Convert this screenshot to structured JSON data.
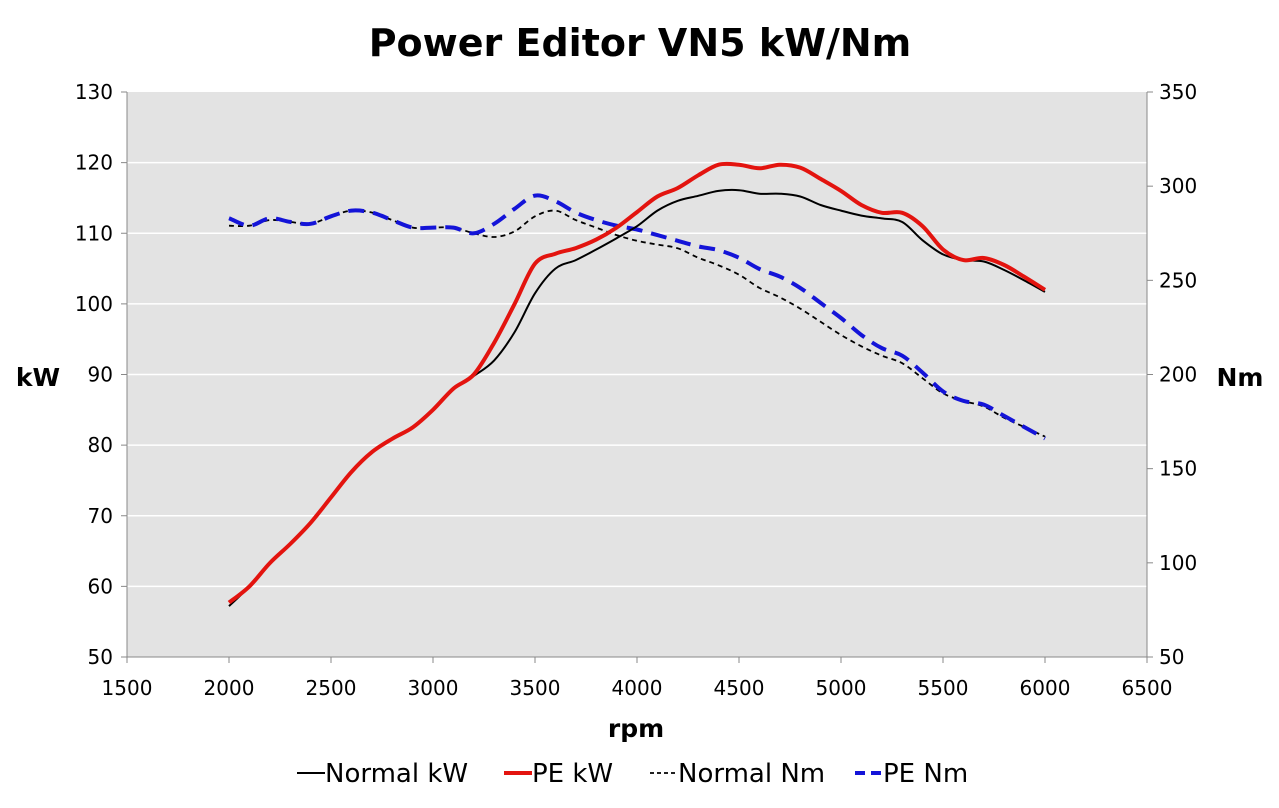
{
  "chart_data": {
    "type": "line",
    "title": "Power Editor VN5 kW/Nm",
    "xlabel": "rpm",
    "ylabel_left": "kW",
    "ylabel_right": "Nm",
    "xlim": [
      1500,
      6500
    ],
    "ylim_left": [
      50,
      130
    ],
    "ylim_right": [
      50,
      350
    ],
    "x_ticks": [
      "1500",
      "2000",
      "2500",
      "3000",
      "3500",
      "4000",
      "4500",
      "5000",
      "5500",
      "6000",
      "6500"
    ],
    "y_left_ticks": [
      "50",
      "60",
      "70",
      "80",
      "90",
      "100",
      "110",
      "120",
      "130"
    ],
    "y_right_ticks": [
      "50",
      "100",
      "150",
      "200",
      "250",
      "300",
      "350"
    ],
    "grid": "horizontal",
    "legend_position": "bottom",
    "colors": {
      "plot_bg": "#e3e3e3",
      "grid": "#ffffff",
      "normal": "#000000",
      "pe_kw": "#e3140f",
      "pe_nm": "#1414d8"
    },
    "series": [
      {
        "name": "Normal kW",
        "axis": "left",
        "style": "solid",
        "color": "#000000",
        "points": [
          [
            2000,
            57.2
          ],
          [
            2100,
            60.0
          ],
          [
            2200,
            63.3
          ],
          [
            2300,
            66.0
          ],
          [
            2400,
            69.0
          ],
          [
            2500,
            72.6
          ],
          [
            2600,
            76.2
          ],
          [
            2700,
            79.0
          ],
          [
            2800,
            80.9
          ],
          [
            2900,
            82.5
          ],
          [
            3000,
            85.0
          ],
          [
            3100,
            88.0
          ],
          [
            3200,
            89.8
          ],
          [
            3300,
            92.0
          ],
          [
            3400,
            96.0
          ],
          [
            3500,
            101.5
          ],
          [
            3600,
            105.0
          ],
          [
            3700,
            106.2
          ],
          [
            3800,
            107.7
          ],
          [
            3900,
            109.3
          ],
          [
            4000,
            111.0
          ],
          [
            4100,
            113.2
          ],
          [
            4200,
            114.6
          ],
          [
            4300,
            115.3
          ],
          [
            4400,
            116.0
          ],
          [
            4500,
            116.1
          ],
          [
            4600,
            115.6
          ],
          [
            4700,
            115.6
          ],
          [
            4800,
            115.2
          ],
          [
            4900,
            114.0
          ],
          [
            5000,
            113.2
          ],
          [
            5100,
            112.5
          ],
          [
            5200,
            112.1
          ],
          [
            5300,
            111.6
          ],
          [
            5400,
            109.0
          ],
          [
            5500,
            107.0
          ],
          [
            5600,
            106.2
          ],
          [
            5700,
            106.0
          ],
          [
            5800,
            104.8
          ],
          [
            5900,
            103.3
          ],
          [
            6000,
            101.7
          ]
        ]
      },
      {
        "name": "PE kW",
        "axis": "left",
        "style": "solid",
        "color": "#e3140f",
        "points": [
          [
            2000,
            57.7
          ],
          [
            2100,
            60.0
          ],
          [
            2200,
            63.3
          ],
          [
            2300,
            66.0
          ],
          [
            2400,
            69.0
          ],
          [
            2500,
            72.6
          ],
          [
            2600,
            76.2
          ],
          [
            2700,
            79.0
          ],
          [
            2800,
            80.9
          ],
          [
            2900,
            82.5
          ],
          [
            3000,
            85.0
          ],
          [
            3100,
            88.0
          ],
          [
            3200,
            90.0
          ],
          [
            3300,
            94.5
          ],
          [
            3400,
            100.0
          ],
          [
            3500,
            105.7
          ],
          [
            3600,
            107.1
          ],
          [
            3700,
            107.9
          ],
          [
            3800,
            109.1
          ],
          [
            3900,
            110.8
          ],
          [
            4000,
            113.0
          ],
          [
            4100,
            115.2
          ],
          [
            4200,
            116.4
          ],
          [
            4300,
            118.2
          ],
          [
            4400,
            119.7
          ],
          [
            4500,
            119.7
          ],
          [
            4600,
            119.2
          ],
          [
            4700,
            119.7
          ],
          [
            4800,
            119.3
          ],
          [
            4900,
            117.7
          ],
          [
            5000,
            116.0
          ],
          [
            5100,
            114.0
          ],
          [
            5200,
            112.9
          ],
          [
            5300,
            112.9
          ],
          [
            5400,
            111.0
          ],
          [
            5500,
            107.7
          ],
          [
            5600,
            106.2
          ],
          [
            5700,
            106.5
          ],
          [
            5800,
            105.5
          ],
          [
            5900,
            103.8
          ],
          [
            6000,
            102.0
          ]
        ]
      },
      {
        "name": "Normal Nm",
        "axis": "right",
        "style": "dashed-small",
        "color": "#000000",
        "points": [
          [
            2000,
            279
          ],
          [
            2100,
            279
          ],
          [
            2200,
            282
          ],
          [
            2300,
            281
          ],
          [
            2400,
            280
          ],
          [
            2500,
            284
          ],
          [
            2600,
            287
          ],
          [
            2700,
            286
          ],
          [
            2800,
            282
          ],
          [
            2900,
            278
          ],
          [
            3000,
            278
          ],
          [
            3100,
            278
          ],
          [
            3200,
            275
          ],
          [
            3300,
            273
          ],
          [
            3400,
            276
          ],
          [
            3500,
            284
          ],
          [
            3600,
            287
          ],
          [
            3700,
            282
          ],
          [
            3800,
            278
          ],
          [
            3900,
            274
          ],
          [
            4000,
            271
          ],
          [
            4100,
            269
          ],
          [
            4200,
            267
          ],
          [
            4300,
            262
          ],
          [
            4400,
            258
          ],
          [
            4500,
            253
          ],
          [
            4600,
            246
          ],
          [
            4700,
            241
          ],
          [
            4800,
            235
          ],
          [
            4900,
            228
          ],
          [
            5000,
            221
          ],
          [
            5100,
            215
          ],
          [
            5200,
            210
          ],
          [
            5300,
            206
          ],
          [
            5400,
            198
          ],
          [
            5500,
            190
          ],
          [
            5600,
            186
          ],
          [
            5700,
            183
          ],
          [
            5800,
            177
          ],
          [
            5900,
            172
          ],
          [
            6000,
            167
          ]
        ]
      },
      {
        "name": "PE Nm",
        "axis": "right",
        "style": "dashed-large",
        "color": "#1414d8",
        "points": [
          [
            2000,
            283
          ],
          [
            2100,
            279
          ],
          [
            2200,
            283
          ],
          [
            2300,
            281
          ],
          [
            2400,
            280
          ],
          [
            2500,
            284
          ],
          [
            2600,
            287
          ],
          [
            2700,
            286
          ],
          [
            2800,
            282
          ],
          [
            2900,
            278
          ],
          [
            3000,
            278
          ],
          [
            3100,
            278
          ],
          [
            3200,
            275
          ],
          [
            3300,
            280
          ],
          [
            3400,
            288
          ],
          [
            3500,
            295
          ],
          [
            3600,
            292
          ],
          [
            3700,
            286
          ],
          [
            3800,
            282
          ],
          [
            3900,
            279
          ],
          [
            4000,
            277
          ],
          [
            4100,
            274
          ],
          [
            4200,
            271
          ],
          [
            4300,
            268
          ],
          [
            4400,
            266
          ],
          [
            4500,
            262
          ],
          [
            4600,
            256
          ],
          [
            4700,
            252
          ],
          [
            4800,
            246
          ],
          [
            4900,
            238
          ],
          [
            5000,
            230
          ],
          [
            5100,
            221
          ],
          [
            5200,
            214
          ],
          [
            5300,
            210
          ],
          [
            5400,
            201
          ],
          [
            5500,
            191
          ],
          [
            5600,
            186
          ],
          [
            5700,
            184
          ],
          [
            5800,
            178
          ],
          [
            5900,
            172
          ],
          [
            6000,
            166
          ]
        ]
      }
    ]
  }
}
